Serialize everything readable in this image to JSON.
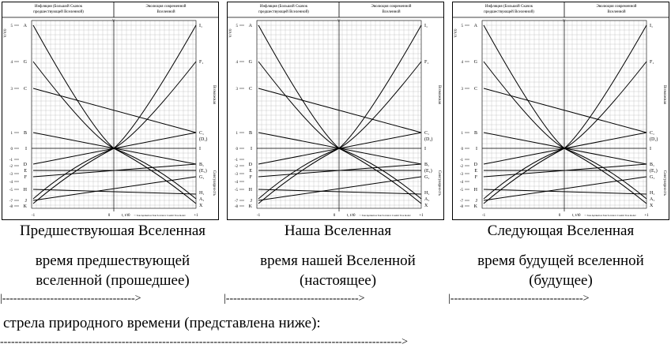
{
  "panels": [
    {
      "id": "previous",
      "name": "Предшествуюшая Вселенная",
      "time_line1": "время предшествующей",
      "time_line2": "вселенной  (прошедшее)"
    },
    {
      "id": "ours",
      "name": "Наша Вселенная",
      "time_line1": "время нашей Вселенной",
      "time_line2": "(настоящее)"
    },
    {
      "id": "next",
      "name": "Следующая Вселенная",
      "time_line1": "время будущей вселенной",
      "time_line2": "(будущее)"
    }
  ],
  "diagram": {
    "header_left_line1": "Инфляция (Большой Скачок",
    "header_left_line2": "предшествующей Вселенной)",
    "header_right_line1": "Эволюция современной",
    "header_right_line2": "Вселенной",
    "y_axis_label": "V/V0",
    "y_marker": "Y",
    "x_axis_label": "t, t/t0",
    "right_side_top": "Возможная",
    "right_side_bottom": "Сингулярность",
    "left_labels": [
      "A",
      "G",
      "C",
      "B",
      "I",
      "D",
      "E",
      "F",
      "H",
      "J",
      "K"
    ],
    "left_ticks": [
      "5",
      "4",
      "3",
      "1",
      "0",
      "-1",
      "-2",
      "-3",
      "-4",
      "-5",
      "-7",
      "-8"
    ],
    "right_labels": [
      "I₁",
      "F₁",
      "C₁",
      "(D₁)",
      "I",
      "B₁",
      "(E₁)",
      "G₁",
      "H₁",
      "A₁",
      "X"
    ],
    "x_ticks": [
      "-1",
      "0",
      "+1"
    ],
    "footnote": "© Ivan Apraksin и Ivan Sorvanov Cosmic Tree model"
  },
  "arrows": {
    "segment1": "|------------------------------------>",
    "segment2": "|------------------------------------>",
    "segment3": "|------------------------------------>",
    "caption": "стрела природного времени (представлена ниже):",
    "full": "------------------------------------------------------------------------------------------------------------->"
  }
}
